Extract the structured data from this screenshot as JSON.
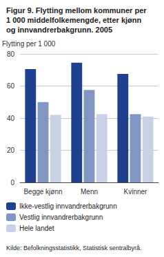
{
  "chart_data": {
    "type": "bar",
    "title": "Figur 9. Flytting mellom kommuner per\n1 000 middelfolkemengde, etter kjønn\nog innvandrerbakgrunn. 2005",
    "y_label": "Flytting per 1 000",
    "source": "Kilde: Befolkningsstatistikk, Statistisk sentralbyrå.",
    "categories": [
      "Begge kjønn",
      "Menn",
      "Kvinner"
    ],
    "series": [
      {
        "name": "Ikke-vestlig innvandrerbakgrunn",
        "color": "#1f3f8f",
        "values": [
          70.5,
          74.5,
          67.5
        ]
      },
      {
        "name": "Vestlig innvandrerbakgrunn",
        "color": "#8296c3",
        "values": [
          50,
          57.5,
          42.5
        ]
      },
      {
        "name": "Hele landet",
        "color": "#c9d1e6",
        "values": [
          42,
          42.5,
          41
        ]
      }
    ],
    "ylim": [
      0,
      80
    ],
    "yticks": [
      0,
      20,
      40,
      60,
      80
    ],
    "grid": true,
    "legend": "bottom"
  }
}
